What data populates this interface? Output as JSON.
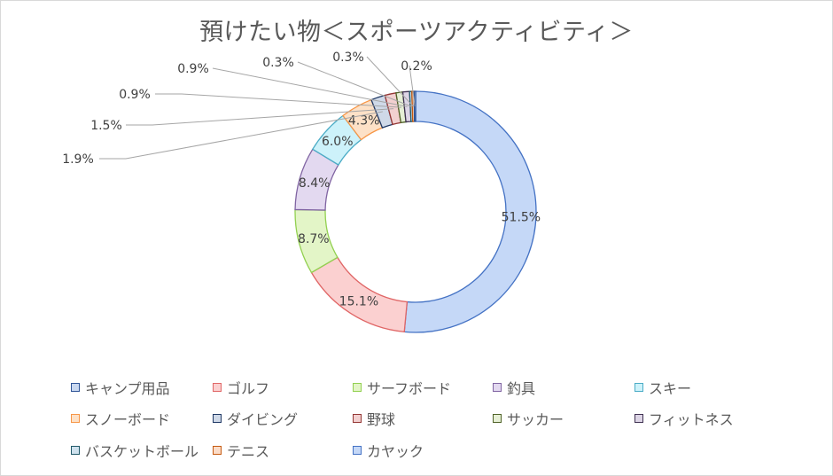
{
  "chart_data": {
    "type": "pie",
    "variant": "doughnut",
    "title": "預けたい物＜スポーツアクティビティ＞",
    "legend_position": "bottom",
    "start": "top, clockwise",
    "slices": [
      {
        "label": "カヤック",
        "value": 51.5,
        "display": "51.5%",
        "fill": "#c5d8f7",
        "stroke": "#4472c4"
      },
      {
        "label": "ゴルフ",
        "value": 15.1,
        "display": "15.1%",
        "fill": "#fbd0d0",
        "stroke": "#e06666"
      },
      {
        "label": "サーフボード",
        "value": 8.7,
        "display": "8.7%",
        "fill": "#e3f5c7",
        "stroke": "#92d050"
      },
      {
        "label": "釣具",
        "value": 8.4,
        "display": "8.4%",
        "fill": "#e3d9f0",
        "stroke": "#8064a2"
      },
      {
        "label": "スキー",
        "value": 6.0,
        "display": "6.0%",
        "fill": "#cdf2fa",
        "stroke": "#4bacc6"
      },
      {
        "label": "スノーボード",
        "value": 4.3,
        "display": "4.3%",
        "fill": "#fde1c7",
        "stroke": "#f79646"
      },
      {
        "label": "ダイビング",
        "value": 1.9,
        "display": "1.9%",
        "fill": "#cfd9e8",
        "stroke": "#1f3864"
      },
      {
        "label": "野球",
        "value": 1.5,
        "display": "1.5%",
        "fill": "#f2d0d0",
        "stroke": "#943634"
      },
      {
        "label": "サッカー",
        "value": 0.9,
        "display": "0.9%",
        "fill": "#e6efd5",
        "stroke": "#4f6228"
      },
      {
        "label": "フィットネス",
        "value": 0.9,
        "display": "0.9%",
        "fill": "#ddd5e6",
        "stroke": "#3f3151"
      },
      {
        "label": "バスケットボール",
        "value": 0.3,
        "display": "0.3%",
        "fill": "#cfe2ee",
        "stroke": "#215968"
      },
      {
        "label": "テニス",
        "value": 0.3,
        "display": "0.3%",
        "fill": "#fbdcc8",
        "stroke": "#c55a11"
      },
      {
        "label": "キャンプ用品",
        "value": 0.2,
        "display": "0.2%",
        "fill": "#c9d8f0",
        "stroke": "#2f5597"
      }
    ],
    "legend_order": [
      "キャンプ用品",
      "ゴルフ",
      "サーフボード",
      "釣具",
      "スキー",
      "スノーボード",
      "ダイビング",
      "野球",
      "サッカー",
      "フィットネス",
      "バスケットボール",
      "テニス",
      "カヤック"
    ]
  }
}
